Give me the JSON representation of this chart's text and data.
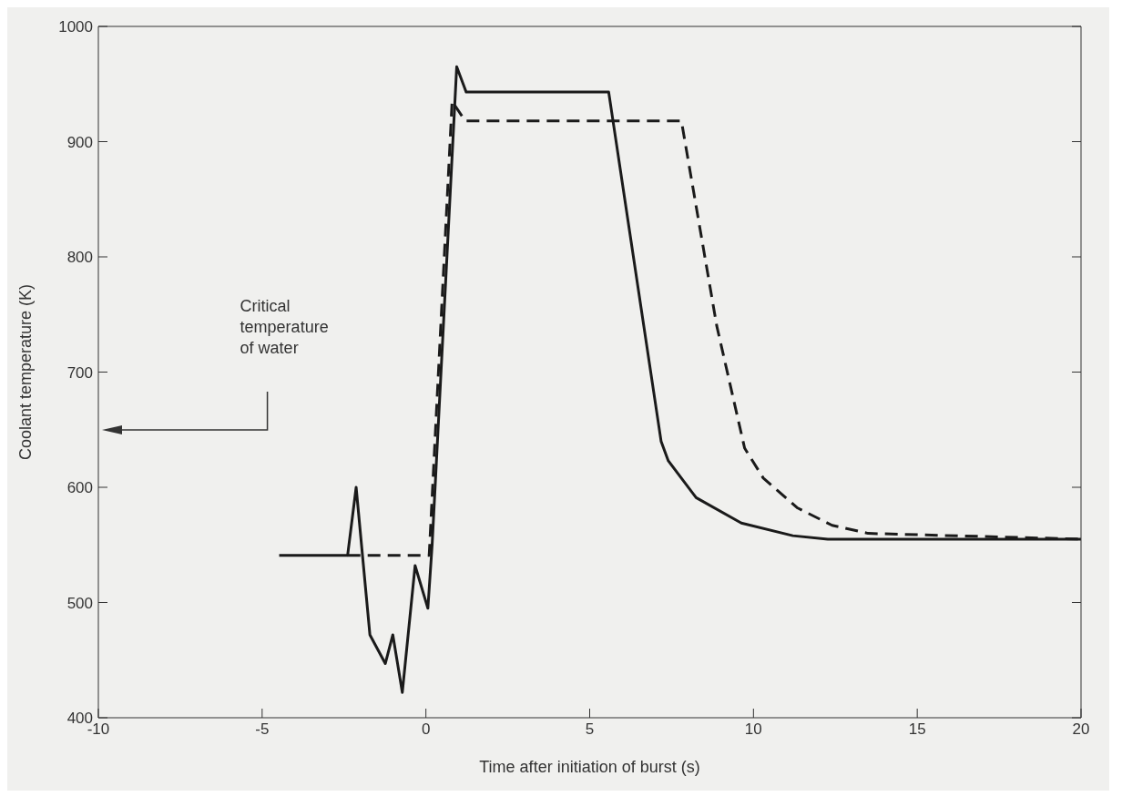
{
  "chart_data": {
    "type": "line",
    "xlabel": "Time after initiation of burst (s)",
    "ylabel": "Coolant temperature (K)",
    "xlim": [
      -10,
      20
    ],
    "xticks": [
      -10,
      -5,
      0,
      5,
      10,
      15,
      20
    ],
    "ylim": [
      400,
      1000
    ],
    "yticks": [
      400,
      500,
      600,
      700,
      800,
      900,
      1000
    ],
    "marker": "none",
    "series": [
      {
        "color": "#1a1a1a",
        "line_style": "solid",
        "x": [
          -4.48,
          -4.3,
          -2.39,
          -2.13,
          -1.71,
          -1.24,
          -1.01,
          -0.72,
          -0.33,
          0.06,
          0.19,
          0.94,
          1.23,
          5.58,
          7.18,
          7.4,
          8.25,
          9.63,
          11.2,
          12.27,
          20
        ],
        "values": [
          541,
          541,
          541,
          600,
          472,
          447,
          472,
          422,
          532,
          495,
          550,
          965,
          943,
          943,
          640,
          623,
          591,
          569,
          558,
          555,
          555
        ]
      },
      {
        "color": "#1a1a1a",
        "line_style": "dashed",
        "x": [
          -2.39,
          0.1,
          0.8,
          1.2,
          7.8,
          8.88,
          9.73,
          10.3,
          11.35,
          12.4,
          13.5,
          20
        ],
        "values": [
          541,
          541,
          935,
          918,
          918,
          740,
          634,
          608,
          582,
          567,
          560,
          555
        ]
      }
    ],
    "annotations": [
      "Critical\ntemperature\nof water"
    ]
  }
}
